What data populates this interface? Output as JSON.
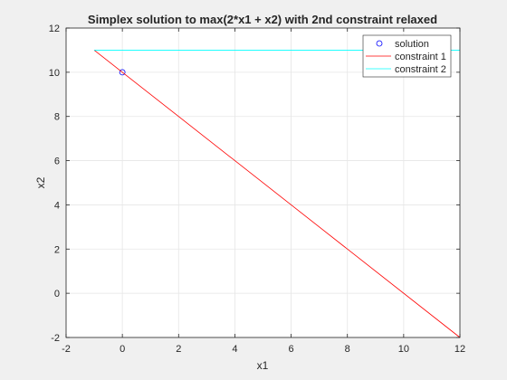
{
  "chart_data": {
    "type": "line",
    "title": "Simplex solution to max(2*x1 + x2) with 2nd constraint relaxed",
    "xlabel": "x1",
    "ylabel": "x2",
    "xlim": [
      -2,
      12
    ],
    "ylim": [
      -2,
      12
    ],
    "xticks": [
      -2,
      0,
      2,
      4,
      6,
      8,
      10,
      12
    ],
    "yticks": [
      -2,
      0,
      2,
      4,
      6,
      8,
      10,
      12
    ],
    "xtick_labels": [
      "-2",
      "0",
      "2",
      "4",
      "6",
      "8",
      "10",
      "12"
    ],
    "ytick_labels": [
      "-2",
      "0",
      "2",
      "4",
      "6",
      "8",
      "10",
      "12"
    ],
    "grid": true,
    "legend_position": "top-right",
    "series": [
      {
        "name": "solution",
        "kind": "marker",
        "marker": "circle",
        "color": "#0000ff",
        "x": [
          0
        ],
        "y": [
          10
        ]
      },
      {
        "name": "constraint 1",
        "kind": "line",
        "color": "#ff0000",
        "x": [
          -1,
          12
        ],
        "y": [
          11,
          -2
        ]
      },
      {
        "name": "constraint 2",
        "kind": "line",
        "color": "#00ffff",
        "x": [
          -1,
          12
        ],
        "y": [
          11,
          11
        ]
      }
    ]
  }
}
